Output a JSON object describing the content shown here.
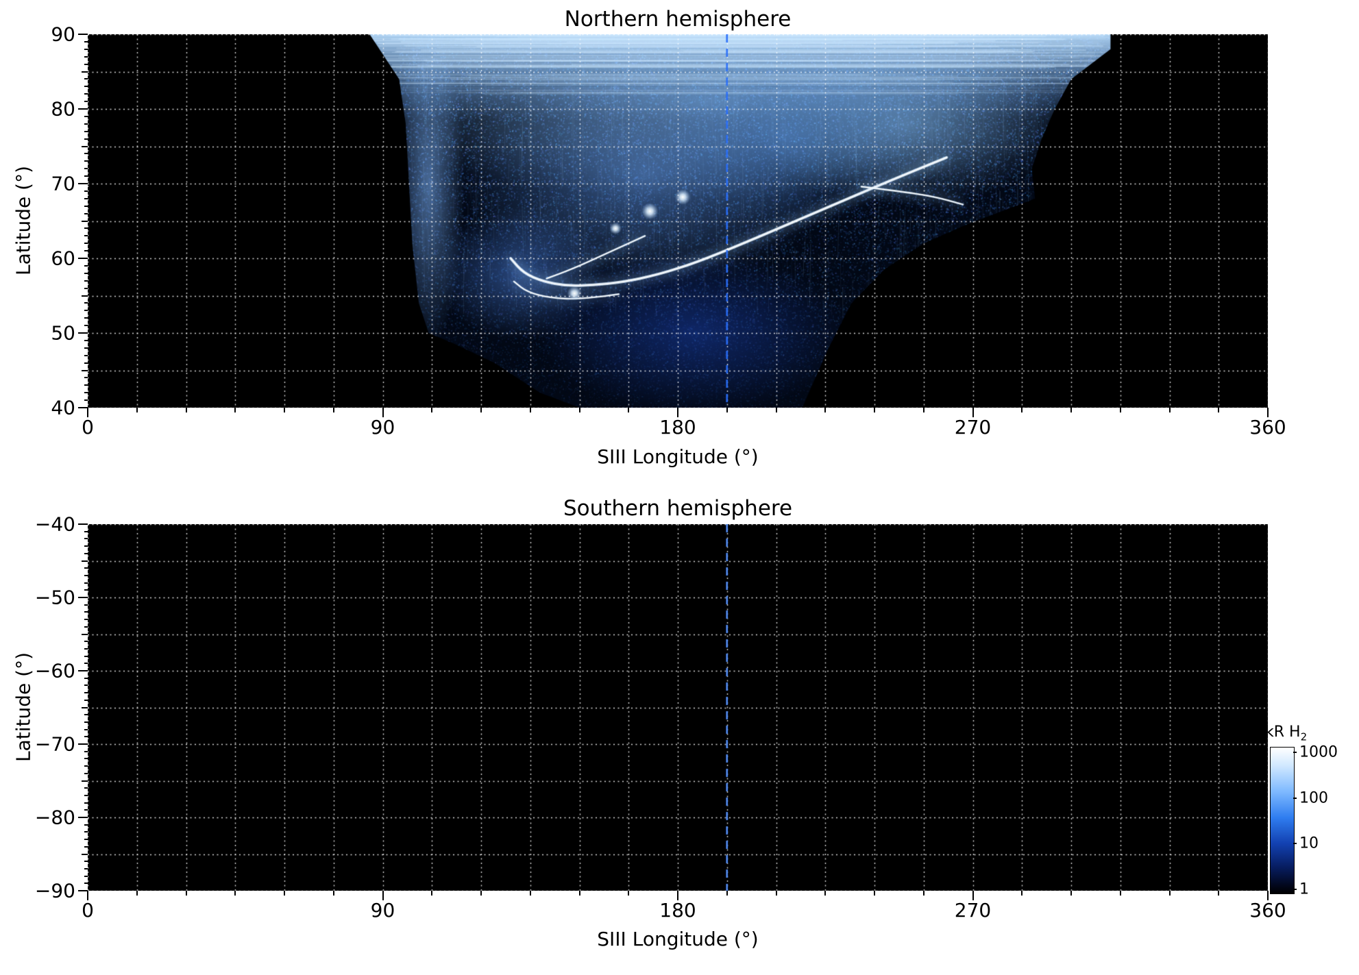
{
  "figure": {
    "background": "#ffffff"
  },
  "panels": [
    {
      "title": "Northern hemisphere",
      "xlabel": "SIII Longitude (°)",
      "ylabel": "Latitude (°)",
      "xlim": [
        0,
        360
      ],
      "ylim": [
        40,
        90
      ],
      "xticks": [
        0,
        90,
        180,
        270,
        360
      ],
      "yticks": [
        90,
        80,
        70,
        60,
        50,
        40
      ],
      "x_grid_step_deg": 15,
      "y_grid_step_deg": 5,
      "x_minor_tick_step_deg": 15,
      "y_minor_tick_step_deg": 1,
      "grid_color": "#ffffff",
      "plot_background": "#000000",
      "reference_longitude_deg": 195
    },
    {
      "title": "Southern hemisphere",
      "xlabel": "SIII Longitude (°)",
      "ylabel": "Latitude (°)",
      "xlim": [
        0,
        360
      ],
      "ylim": [
        -90,
        -40
      ],
      "xticks": [
        0,
        90,
        180,
        270,
        360
      ],
      "yticks": [
        -40,
        -50,
        -60,
        -70,
        -80,
        -90
      ],
      "x_grid_step_deg": 15,
      "y_grid_step_deg": 5,
      "x_minor_tick_step_deg": 15,
      "y_minor_tick_step_deg": 1,
      "grid_color": "#ffffff",
      "plot_background": "#000000",
      "reference_longitude_deg": 195
    }
  ],
  "colorbar": {
    "title": "kR H",
    "title_sub": "2",
    "scale": "log",
    "ticks": [
      1000,
      100,
      10,
      1
    ],
    "value_range": [
      0.85,
      1300
    ],
    "gradient_stops": [
      [
        "0%",
        "#ffffff"
      ],
      [
        "12%",
        "#d2e9ff"
      ],
      [
        "30%",
        "#7fbaff"
      ],
      [
        "48%",
        "#2f7df0"
      ],
      [
        "66%",
        "#1240b0"
      ],
      [
        "82%",
        "#071d60"
      ],
      [
        "94%",
        "#02081f"
      ],
      [
        "100%",
        "#000000"
      ]
    ]
  },
  "chart_data": [
    {
      "type": "heatmap",
      "title": "Northern hemisphere",
      "xlabel": "SIII Longitude (°)",
      "ylabel": "Latitude (°)",
      "xlim": [
        0,
        360
      ],
      "ylim": [
        40,
        90
      ],
      "units": "kR H2, logarithmic color scale ~1 to >1000 kR",
      "grid": "white dotted, 15° longitude × 5° latitude",
      "background": "black (no data / no emission)",
      "observed_region_outline_lon_lat": [
        [
          86,
          90
        ],
        [
          312,
          90
        ],
        [
          312,
          88
        ],
        [
          300,
          84
        ],
        [
          295,
          80
        ],
        [
          291,
          76
        ],
        [
          288,
          72
        ],
        [
          289,
          68
        ],
        [
          280,
          66.5
        ],
        [
          268,
          64.5
        ],
        [
          255,
          62
        ],
        [
          243,
          58.5
        ],
        [
          233,
          54
        ],
        [
          226,
          48
        ],
        [
          221,
          43
        ],
        [
          218,
          40
        ],
        [
          150,
          40
        ],
        [
          138,
          42
        ],
        [
          124,
          46
        ],
        [
          112,
          48.5
        ],
        [
          104,
          50
        ],
        [
          101,
          54
        ],
        [
          99,
          62
        ],
        [
          98,
          70
        ],
        [
          97,
          78
        ],
        [
          95,
          84
        ]
      ],
      "main_oval_arc_lon_lat": [
        [
          262,
          73.5
        ],
        [
          248,
          71
        ],
        [
          232,
          68
        ],
        [
          216,
          65
        ],
        [
          200,
          62
        ],
        [
          186,
          59.5
        ],
        [
          174,
          57.8
        ],
        [
          163,
          56.8
        ],
        [
          154,
          56.4
        ],
        [
          146,
          56.3
        ],
        [
          139,
          56.9
        ],
        [
          133,
          58
        ],
        [
          129,
          60
        ]
      ],
      "secondary_arcs_lon_lat": [
        [
          [
            236,
            69.6
          ],
          [
            247,
            69
          ],
          [
            258,
            68.3
          ],
          [
            267,
            67.2
          ]
        ],
        [
          [
            162,
            55.2
          ],
          [
            151,
            54.5
          ],
          [
            141,
            54.7
          ],
          [
            134,
            55.5
          ],
          [
            130,
            56.9
          ]
        ],
        [
          [
            170,
            63
          ],
          [
            158,
            60.6
          ],
          [
            148,
            58.6
          ],
          [
            140,
            57.3
          ]
        ]
      ],
      "bright_spots_lon_lat_kR": [
        [
          171.5,
          66.3,
          900
        ],
        [
          181.5,
          68.2,
          800
        ],
        [
          148.5,
          55.3,
          700
        ],
        [
          161,
          64,
          400
        ]
      ],
      "polar_cap_lat_range": [
        82,
        90
      ],
      "polar_cap_lon_range": [
        86,
        312
      ],
      "diffuse_emission": "10–100 kR blue haze across observed swath, brightest between 65° and 88° latitude; faint speckled ~1–10 kR emission down to 40° between longitudes ~140° and ~220°",
      "polar_streaks": "bright horizontal scan streaks, ~100–1000 kR, latitudes 82–90, longitudes 86–312",
      "reference_longitude_line_deg": 195
    },
    {
      "type": "heatmap",
      "title": "Southern hemisphere",
      "xlabel": "SIII Longitude (°)",
      "ylabel": "Latitude (°)",
      "xlim": [
        0,
        360
      ],
      "ylim": [
        -90,
        -40
      ],
      "units": "kR H2, logarithmic color scale ~1 to >1000 kR",
      "grid": "white dotted, 15° longitude × 5° latitude",
      "values": "no emission observed (background ~1 kR, fully black panel)",
      "reference_longitude_line_deg": 195
    }
  ]
}
